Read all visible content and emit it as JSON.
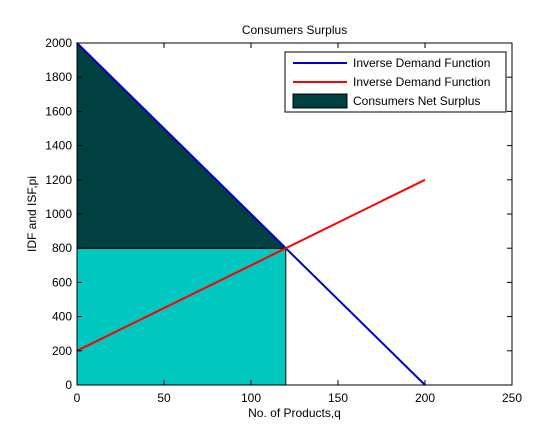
{
  "chart_data": {
    "type": "line",
    "title": "Consumers Surplus",
    "xlabel": "No. of Products,q",
    "ylabel": "IDF and ISF,pi",
    "xlim": [
      0,
      250
    ],
    "ylim": [
      0,
      2000
    ],
    "xticks": [
      0,
      50,
      100,
      150,
      200,
      250
    ],
    "yticks": [
      0,
      200,
      400,
      600,
      800,
      1000,
      1200,
      1400,
      1600,
      1800,
      2000
    ],
    "grid": false,
    "legend_position": "top-right",
    "series": [
      {
        "name": "Inverse Demand Function",
        "color": "#0000cc",
        "x": [
          0,
          200
        ],
        "y": [
          2000,
          0
        ]
      },
      {
        "name": "Inverse Demand Function",
        "color": "#ff0000",
        "x": [
          0,
          200
        ],
        "y": [
          200,
          1200
        ]
      }
    ],
    "regions": [
      {
        "name": "Consumers Net Surplus",
        "color": "#004040",
        "polygon": [
          [
            0,
            800
          ],
          [
            0,
            2000
          ],
          [
            120,
            800
          ]
        ]
      },
      {
        "name": "",
        "color": "#00c8c0",
        "polygon": [
          [
            0,
            0
          ],
          [
            0,
            800
          ],
          [
            120,
            800
          ],
          [
            120,
            0
          ]
        ]
      }
    ]
  }
}
